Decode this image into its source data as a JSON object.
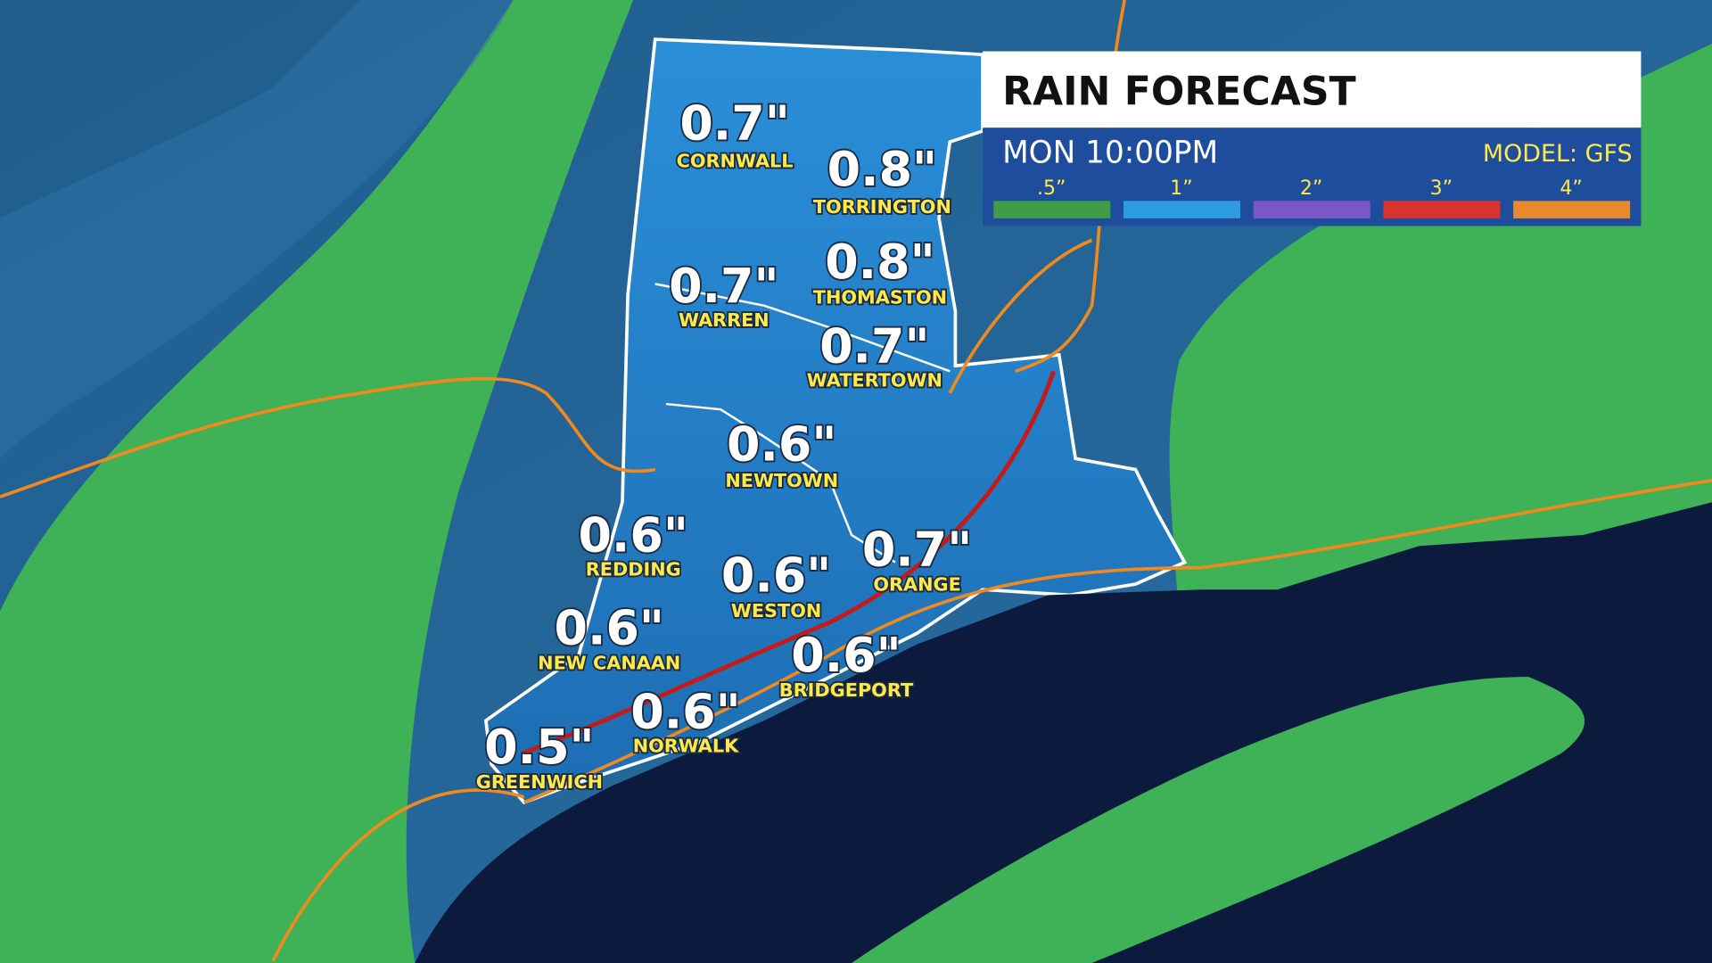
{
  "header": {
    "title": "RAIN FORECAST",
    "time": "MON 10:00PM",
    "model": "MODEL: GFS"
  },
  "legend": [
    {
      "label": ".5”",
      "color": "#3f9d45"
    },
    {
      "label": "1”",
      "color": "#2f9be0"
    },
    {
      "label": "2”",
      "color": "#7a57c9"
    },
    {
      "label": "3”",
      "color": "#d8332c"
    },
    {
      "label": "4”",
      "color": "#e88a2c"
    }
  ],
  "cities": [
    {
      "name": "CORNWALL",
      "amount": "0.7\""
    },
    {
      "name": "TORRINGTON",
      "amount": "0.8\""
    },
    {
      "name": "WARREN",
      "amount": "0.7\""
    },
    {
      "name": "THOMASTON",
      "amount": "0.8\""
    },
    {
      "name": "WATERTOWN",
      "amount": "0.7\""
    },
    {
      "name": "NEWTOWN",
      "amount": "0.6\""
    },
    {
      "name": "REDDING",
      "amount": "0.6\""
    },
    {
      "name": "WESTON",
      "amount": "0.6\""
    },
    {
      "name": "ORANGE",
      "amount": "0.7\""
    },
    {
      "name": "NEW CANAAN",
      "amount": "0.6\""
    },
    {
      "name": "BRIDGEPORT",
      "amount": "0.6\""
    },
    {
      "name": "NORWALK",
      "amount": "0.6\""
    },
    {
      "name": "GREENWICH",
      "amount": "0.5\""
    }
  ]
}
